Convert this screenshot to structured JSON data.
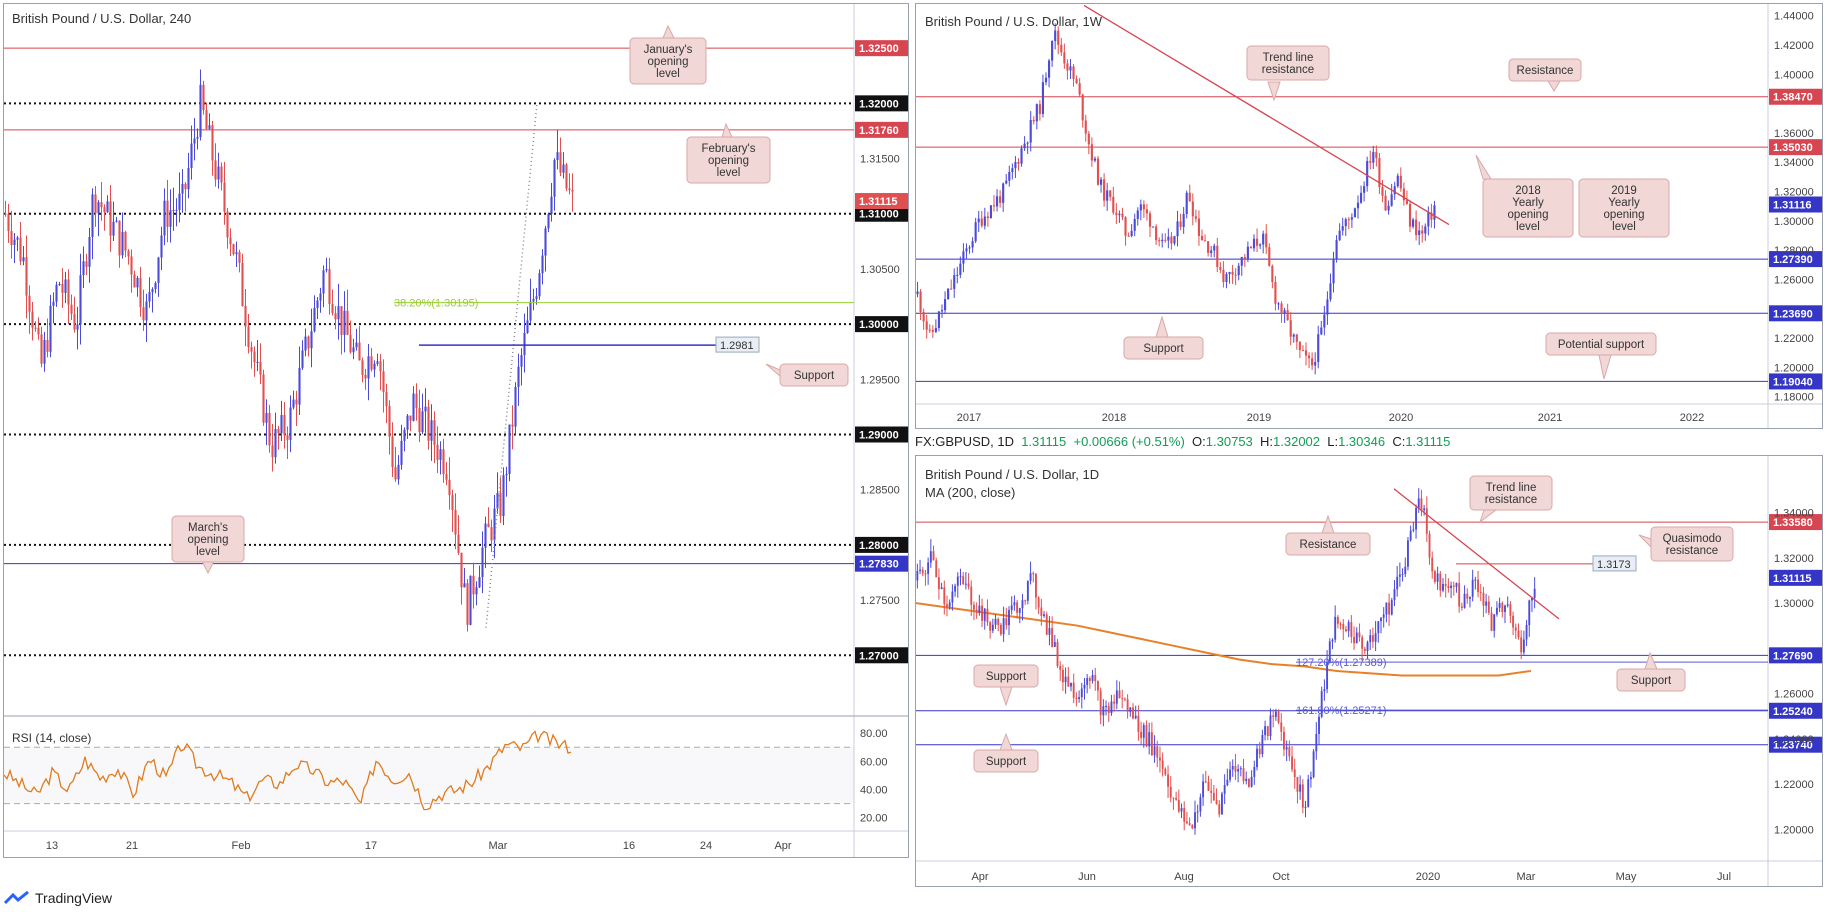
{
  "brand": {
    "name": "TradingView",
    "icon": "tradingview-logo-icon"
  },
  "infobar": {
    "symbol": "FX:GBPUSD, 1D",
    "last": "1.31115",
    "change": "+0.00666 (+0.51%)",
    "o_label": "O:",
    "o": "1.30753",
    "h_label": "H:",
    "h": "1.32002",
    "l_label": "L:",
    "l": "1.30346",
    "c_label": "C:",
    "c": "1.31115"
  },
  "colors": {
    "up": "#4b4bd8",
    "down": "#e05050",
    "resistance": "#d64550",
    "support": "#3535c8",
    "ma": "#e8802a",
    "rsi": "#e07b1c",
    "fib": "#9acd32",
    "callout_bg": "#f2d7d7",
    "callout_border": "#d9a8a8"
  },
  "chart_data": [
    {
      "id": "h4",
      "type": "line",
      "title": "British Pound / U.S. Dollar, 240",
      "ylim": [
        1.2645,
        1.329
      ],
      "x_ticks": [
        "13",
        "21",
        "Feb",
        "17",
        "Mar",
        "16",
        "24",
        "Apr"
      ],
      "price_path": [
        1.31,
        1.306,
        1.296,
        1.304,
        1.3,
        1.312,
        1.309,
        1.306,
        1.301,
        1.31,
        1.311,
        1.32,
        1.313,
        1.306,
        1.297,
        1.289,
        1.291,
        1.298,
        1.305,
        1.3,
        1.296,
        1.298,
        1.286,
        1.293,
        1.29,
        1.287,
        1.274,
        1.28,
        1.284,
        1.296,
        1.304,
        1.315,
        1.311
      ],
      "price_path_points": 33,
      "horizontal_levels": [
        {
          "value": 1.325,
          "label": "1.32500",
          "style": "resistance"
        },
        {
          "value": 1.32,
          "label": "1.32000",
          "style": "dotted"
        },
        {
          "value": 1.3176,
          "label": "1.31760",
          "style": "resistance"
        },
        {
          "value": 1.31,
          "label": "1.31000",
          "style": "dotted"
        },
        {
          "value": 1.3,
          "label": "1.30000",
          "style": "dotted"
        },
        {
          "value": 1.29,
          "label": "1.29000",
          "style": "dotted"
        },
        {
          "value": 1.28,
          "label": "1.28000",
          "style": "dotted"
        },
        {
          "value": 1.2783,
          "label": "1.27830",
          "style": "support"
        },
        {
          "value": 1.27,
          "label": "1.27000",
          "style": "dotted"
        }
      ],
      "price_ticks": [
        "1.31500",
        "1.30500",
        "1.29500",
        "1.28500",
        "1.27500"
      ],
      "current_price": {
        "value": 1.31115,
        "label": "1.31115"
      },
      "fib": {
        "label": "38.20%(1.30195)",
        "value": 1.30195
      },
      "support_line": {
        "value": 1.2981,
        "label": "1.2981"
      },
      "annotations": [
        {
          "text": "January's opening level"
        },
        {
          "text": "February's opening level"
        },
        {
          "text": "Support"
        },
        {
          "text": "March's opening level"
        }
      ],
      "rsi": {
        "title": "RSI (14, close)",
        "ylim": [
          12,
          90
        ],
        "levels": [
          70,
          30
        ],
        "ticks": [
          "80.00",
          "60.00",
          "40.00",
          "20.00"
        ],
        "values": [
          52,
          44,
          36,
          52,
          39,
          61,
          48,
          55,
          37,
          62,
          48,
          73,
          56,
          51,
          45,
          34,
          47,
          44,
          58,
          54,
          45,
          46,
          29,
          62,
          47,
          52,
          29,
          37,
          40,
          46,
          58,
          72,
          69,
          79,
          73,
          70
        ]
      }
    },
    {
      "id": "weekly",
      "type": "line",
      "title": "British Pound / U.S. Dollar, 1W",
      "ylim": [
        1.175,
        1.448
      ],
      "x_ticks": [
        "2017",
        "2018",
        "2019",
        "2020",
        "2021",
        "2022"
      ],
      "price_path": [
        1.25,
        1.22,
        1.24,
        1.26,
        1.28,
        1.3,
        1.31,
        1.32,
        1.34,
        1.36,
        1.38,
        1.43,
        1.41,
        1.39,
        1.35,
        1.32,
        1.31,
        1.29,
        1.31,
        1.3,
        1.28,
        1.29,
        1.32,
        1.29,
        1.28,
        1.26,
        1.27,
        1.28,
        1.29,
        1.25,
        1.23,
        1.21,
        1.2,
        1.23,
        1.29,
        1.3,
        1.32,
        1.35,
        1.31,
        1.33,
        1.3,
        1.29,
        1.31
      ],
      "horizontal_levels": [
        {
          "value": 1.3847,
          "label": "1.38470",
          "style": "resistance"
        },
        {
          "value": 1.3503,
          "label": "1.35030",
          "style": "resistance"
        },
        {
          "value": 1.2739,
          "label": "1.27390",
          "style": "support"
        },
        {
          "value": 1.2369,
          "label": "1.23690",
          "style": "support"
        },
        {
          "value": 1.1904,
          "label": "1.19040",
          "style": "support"
        }
      ],
      "price_ticks": [
        "1.44000",
        "1.42000",
        "1.40000",
        "1.36000",
        "1.34000",
        "1.32000",
        "1.30000",
        "1.28000",
        "1.26000",
        "1.22000",
        "1.20000",
        "1.18000"
      ],
      "current_price": {
        "value": 1.31116,
        "label": "1.31116"
      },
      "annotations": [
        {
          "text": "Trend line resistance"
        },
        {
          "text": "Resistance"
        },
        {
          "text": "2018 Yearly opening level"
        },
        {
          "text": "2019 Yearly opening level"
        },
        {
          "text": "Support"
        },
        {
          "text": "Potential support"
        }
      ]
    },
    {
      "id": "daily",
      "type": "line",
      "title": "British Pound / U.S. Dollar, 1D",
      "subtitle": "MA (200, close)",
      "ylim": [
        1.186,
        1.365
      ],
      "x_ticks": [
        "Apr",
        "Jun",
        "Aug",
        "Oct",
        "2020",
        "Mar",
        "May",
        "Jul"
      ],
      "price_path": [
        1.31,
        1.32,
        1.3,
        1.31,
        1.3,
        1.29,
        1.29,
        1.3,
        1.31,
        1.29,
        1.27,
        1.26,
        1.27,
        1.25,
        1.26,
        1.25,
        1.24,
        1.23,
        1.21,
        1.2,
        1.22,
        1.21,
        1.23,
        1.22,
        1.24,
        1.25,
        1.23,
        1.21,
        1.25,
        1.29,
        1.29,
        1.28,
        1.29,
        1.3,
        1.32,
        1.35,
        1.31,
        1.31,
        1.3,
        1.31,
        1.29,
        1.3,
        1.28,
        1.31
      ],
      "ma_path": [
        1.3,
        1.298,
        1.296,
        1.294,
        1.292,
        1.29,
        1.287,
        1.284,
        1.281,
        1.278,
        1.275,
        1.273,
        1.272,
        1.27,
        1.269,
        1.268,
        1.268,
        1.268,
        1.268,
        1.27
      ],
      "horizontal_levels": [
        {
          "value": 1.3358,
          "label": "1.33580",
          "style": "resistance"
        },
        {
          "value": 1.2769,
          "label": "1.27690",
          "style": "support"
        },
        {
          "value": 1.2524,
          "label": "1.25240",
          "style": "support"
        },
        {
          "value": 1.2374,
          "label": "1.23740",
          "style": "support"
        }
      ],
      "price_ticks": [
        "1.34000",
        "1.32000",
        "1.30000",
        "1.26000",
        "1.24000",
        "1.22000",
        "1.20000"
      ],
      "current_price": {
        "value": 1.31115,
        "label": "1.31115"
      },
      "fibs": [
        {
          "label": "127.20%(1.27389)",
          "value": 1.27389
        },
        {
          "label": "161.80%(1.25271)",
          "value": 1.25271
        }
      ],
      "quasimodo": {
        "value": 1.3173,
        "label": "1.3173"
      },
      "annotations": [
        {
          "text": "Trend line resistance"
        },
        {
          "text": "Resistance"
        },
        {
          "text": "Quasimodo resistance"
        },
        {
          "text": "Support"
        },
        {
          "text": "Support"
        },
        {
          "text": "Support"
        }
      ]
    }
  ]
}
